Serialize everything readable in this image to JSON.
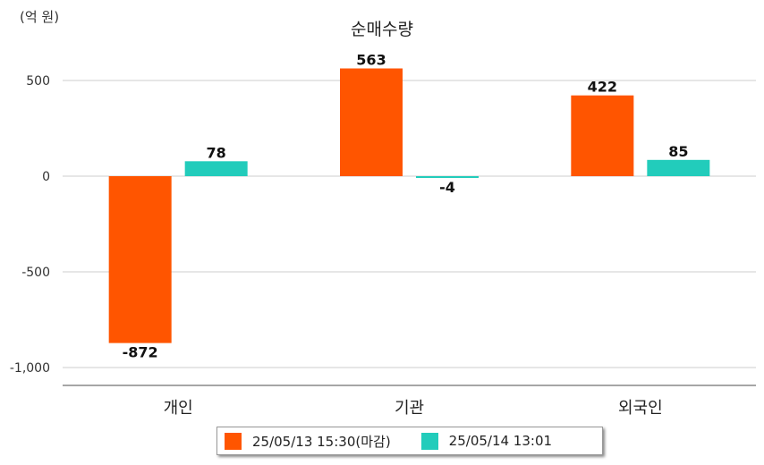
{
  "chart_data": {
    "type": "bar",
    "title": "순매수량",
    "unit": "(억 원)",
    "categories": [
      "개인",
      "기관",
      "외국인"
    ],
    "series": [
      {
        "name": "25/05/13 15:30(마감)",
        "color": "#ff5500",
        "values": [
          -872,
          563,
          422
        ]
      },
      {
        "name": "25/05/14 13:01",
        "color": "#22ccbb",
        "values": [
          78,
          -4,
          85
        ]
      }
    ],
    "ylim": [
      -1100,
      500
    ],
    "yticks": [
      500,
      0,
      -500,
      -1000
    ],
    "ytick_labels": [
      "500",
      "0",
      "-500",
      "-1,000"
    ],
    "grid": true,
    "legend_position": "bottom"
  }
}
